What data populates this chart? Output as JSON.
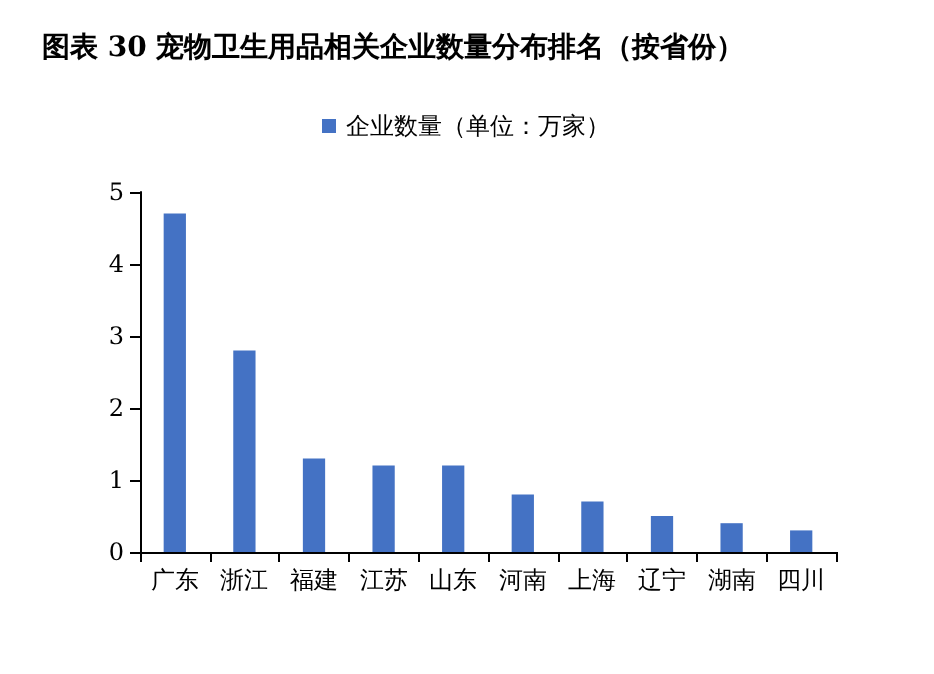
{
  "chart_data": {
    "type": "bar",
    "title": "图表 30 宠物卫生用品相关企业数量分布排名（按省份）",
    "categories": [
      "广东",
      "浙江",
      "福建",
      "江苏",
      "山东",
      "河南",
      "上海",
      "辽宁",
      "湖南",
      "四川"
    ],
    "series": [
      {
        "name": "企业数量（单位：万家）",
        "color": "#4472c4",
        "values": [
          4.7,
          2.8,
          1.3,
          1.2,
          1.2,
          0.8,
          0.7,
          0.5,
          0.4,
          0.3
        ]
      }
    ],
    "ylim": [
      0,
      5
    ],
    "yticks": [
      0,
      1,
      2,
      3,
      4,
      5
    ],
    "grid": false,
    "legend": "top"
  }
}
